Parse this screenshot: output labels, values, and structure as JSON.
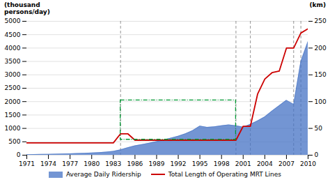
{
  "chart_data": {
    "type": "combo",
    "x": [
      1971,
      1972,
      1973,
      1974,
      1975,
      1976,
      1977,
      1978,
      1979,
      1980,
      1981,
      1982,
      1983,
      1984,
      1985,
      1986,
      1987,
      1988,
      1989,
      1990,
      1991,
      1992,
      1993,
      1994,
      1995,
      1996,
      1997,
      1998,
      1999,
      2000,
      2001,
      2002,
      2003,
      2004,
      2005,
      2006,
      2007,
      2008,
      2009,
      2010
    ],
    "series": [
      {
        "name": "Average Daily Ridership",
        "type": "area",
        "color": "#4472C4",
        "values": [
          20,
          25,
          30,
          35,
          42,
          48,
          55,
          62,
          70,
          82,
          95,
          115,
          145,
          200,
          280,
          350,
          400,
          450,
          510,
          570,
          640,
          710,
          800,
          920,
          1090,
          1040,
          1060,
          1100,
          1130,
          1100,
          1050,
          1150,
          1280,
          1430,
          1650,
          1850,
          2050,
          1900,
          3500,
          4250
        ]
      },
      {
        "name": "Total Length of Operating MRT Lines",
        "type": "line",
        "color": "#CC0000",
        "axis": "y2",
        "values": [
          23,
          23,
          23,
          23,
          23,
          23,
          23,
          23,
          23,
          23,
          23,
          23,
          23,
          40,
          40,
          28,
          28,
          28,
          28,
          28,
          28,
          28,
          28,
          28,
          28,
          28,
          28,
          28,
          28,
          28,
          54,
          54,
          114,
          142,
          154,
          157,
          200,
          200,
          228,
          236
        ]
      }
    ],
    "ylabel": "(thousand\npersons/day)",
    "y2label": "(km)",
    "xlim": [
      1971,
      2010
    ],
    "xticks": [
      1971,
      1974,
      1977,
      1980,
      1983,
      1986,
      1989,
      1992,
      1995,
      1998,
      2001,
      2004,
      2007,
      2010
    ],
    "ylim": [
      0,
      5000
    ],
    "yticks": [
      0,
      500,
      1000,
      1500,
      2000,
      2500,
      3000,
      3500,
      4000,
      4500,
      5000
    ],
    "y2lim": [
      0,
      250
    ],
    "y2ticks": [
      0,
      50,
      100,
      150,
      200,
      250
    ],
    "grid": true,
    "legend": "bottom",
    "vlines": {
      "x": [
        1984,
        2000,
        2002,
        2008,
        2009
      ],
      "color": "#555555",
      "line_style": "dashed"
    },
    "box": {
      "x1": 1984,
      "x2": 2000,
      "y1": 580,
      "y2": 2050,
      "color": "#009933",
      "line_style": "dashdot"
    }
  }
}
